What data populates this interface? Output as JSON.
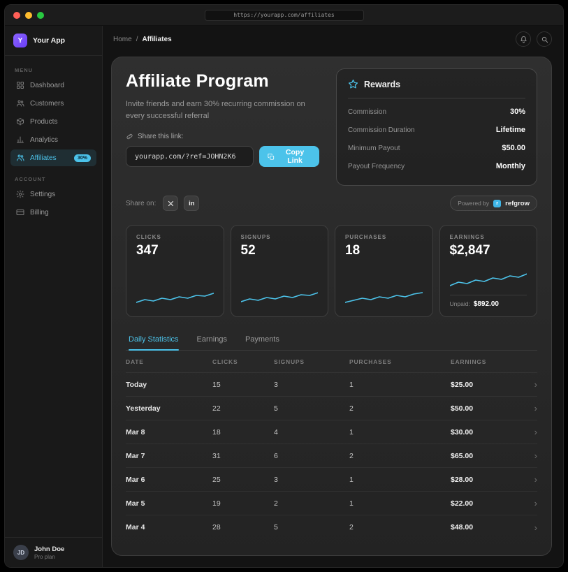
{
  "window": {
    "url": "https://yourapp.com/affiliates"
  },
  "sidebar": {
    "app_name": "Your App",
    "logo_letter": "Y",
    "menu_section_label": "MENU",
    "account_section_label": "ACCOUNT",
    "menu_items": [
      {
        "label": "Dashboard"
      },
      {
        "label": "Customers"
      },
      {
        "label": "Products"
      },
      {
        "label": "Analytics"
      },
      {
        "label": "Affiliates",
        "badge": "30%"
      }
    ],
    "account_items": [
      {
        "label": "Settings"
      },
      {
        "label": "Billing"
      }
    ],
    "user": {
      "initials": "JD",
      "name": "John Doe",
      "plan": "Pro plan"
    }
  },
  "breadcrumb": {
    "home": "Home",
    "separator": "/",
    "current": "Affiliates"
  },
  "hero": {
    "title": "Affiliate Program",
    "subtitle": "Invite friends and earn 30% recurring commission on every successful referral",
    "share_label": "Share this link:",
    "link_value": "yourapp.com/?ref=JOHN2K6",
    "copy_button_label": "Copy Link",
    "share_on_label": "Share on:"
  },
  "rewards": {
    "title": "Rewards",
    "rows": [
      {
        "label": "Commission",
        "value": "30%"
      },
      {
        "label": "Commission Duration",
        "value": "Lifetime"
      },
      {
        "label": "Minimum Payout",
        "value": "$50.00"
      },
      {
        "label": "Payout Frequency",
        "value": "Monthly"
      }
    ]
  },
  "powered_by": {
    "prefix": "Powered by",
    "brand": "refgrow"
  },
  "stats": [
    {
      "label": "CLICKS",
      "value": "347",
      "spark": [
        6,
        10,
        8,
        12,
        10,
        14,
        12,
        16,
        15,
        19
      ]
    },
    {
      "label": "SIGNUPS",
      "value": "52",
      "spark": [
        7,
        11,
        9,
        13,
        11,
        15,
        13,
        17,
        16,
        20
      ]
    },
    {
      "label": "PURCHASES",
      "value": "18",
      "spark": [
        6,
        9,
        12,
        10,
        14,
        12,
        16,
        14,
        18,
        20
      ]
    },
    {
      "label": "EARNINGS",
      "value": "$2,847",
      "spark": [
        5,
        10,
        8,
        13,
        11,
        16,
        14,
        19,
        17,
        22
      ],
      "unpaid_label": "Unpaid:",
      "unpaid_value": "$892.00"
    }
  ],
  "tabs": [
    {
      "label": "Daily Statistics"
    },
    {
      "label": "Earnings"
    },
    {
      "label": "Payments"
    }
  ],
  "table": {
    "headers": [
      "DATE",
      "CLICKS",
      "SIGNUPS",
      "PURCHASES",
      "EARNINGS"
    ],
    "rows": [
      [
        "Today",
        "15",
        "3",
        "1",
        "$25.00"
      ],
      [
        "Yesterday",
        "22",
        "5",
        "2",
        "$50.00"
      ],
      [
        "Mar 8",
        "18",
        "4",
        "1",
        "$30.00"
      ],
      [
        "Mar 7",
        "31",
        "6",
        "2",
        "$65.00"
      ],
      [
        "Mar 6",
        "25",
        "3",
        "1",
        "$28.00"
      ],
      [
        "Mar 5",
        "19",
        "2",
        "1",
        "$22.00"
      ],
      [
        "Mar 4",
        "28",
        "5",
        "2",
        "$48.00"
      ]
    ]
  },
  "icons": {
    "chevron": "›",
    "linkedin": "in"
  },
  "colors": {
    "accent": "#4cc3ea",
    "logo_purple": "#7c5bf0",
    "traffic_red": "#ff5f57",
    "traffic_yellow": "#febc2e",
    "traffic_green": "#28c840"
  }
}
